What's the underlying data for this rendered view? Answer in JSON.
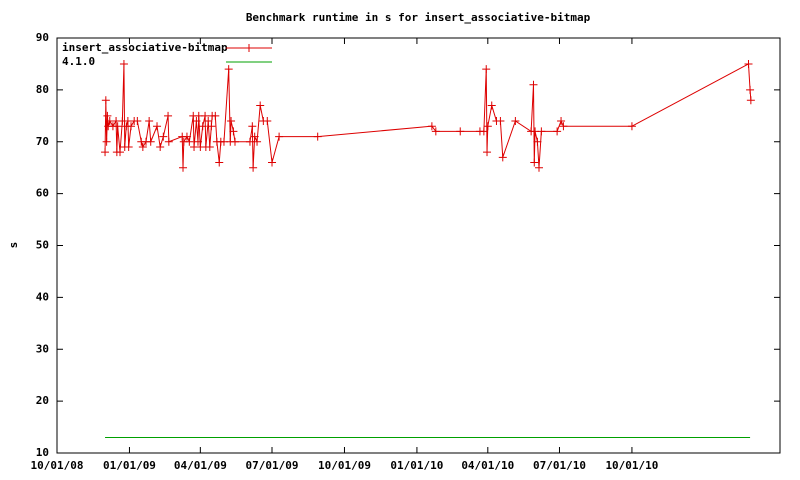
{
  "chart_data": {
    "type": "line",
    "title": "Benchmark runtime in s for insert_associative-bitmap",
    "y_label": "s",
    "xlim": [
      "2008-10-01",
      "2011-04-07"
    ],
    "xticks": [
      {
        "value": "2008-10-01",
        "label": "10/01/08"
      },
      {
        "value": "2009-01-01",
        "label": "01/01/09"
      },
      {
        "value": "2009-04-01",
        "label": "04/01/09"
      },
      {
        "value": "2009-07-01",
        "label": "07/01/09"
      },
      {
        "value": "2009-10-01",
        "label": "10/01/09"
      },
      {
        "value": "2010-01-01",
        "label": "01/01/10"
      },
      {
        "value": "2010-04-01",
        "label": "04/01/10"
      },
      {
        "value": "2010-07-01",
        "label": "07/01/10"
      },
      {
        "value": "2010-10-01",
        "label": "10/01/10"
      }
    ],
    "ylim": [
      10,
      90
    ],
    "yticks": [
      10,
      20,
      30,
      40,
      50,
      60,
      70,
      80,
      90
    ],
    "grid": false,
    "legend": "top-left",
    "series": [
      {
        "name": "insert_associative-bitmap",
        "color": "#dd0000",
        "markers": true,
        "x": [
          "2008-12-01",
          "2008-12-02",
          "2008-12-03",
          "2008-12-04",
          "2008-12-05",
          "2008-12-07",
          "2008-12-11",
          "2008-12-15",
          "2008-12-16",
          "2008-12-17",
          "2008-12-20",
          "2008-12-23",
          "2008-12-25",
          "2008-12-26",
          "2008-12-28",
          "2008-12-30",
          "2008-12-31",
          "2009-01-03",
          "2009-01-07",
          "2009-01-11",
          "2009-01-16",
          "2009-01-18",
          "2009-01-22",
          "2009-01-26",
          "2009-01-28",
          "2009-02-05",
          "2009-02-09",
          "2009-02-13",
          "2009-02-19",
          "2009-02-20",
          "2009-03-09",
          "2009-03-10",
          "2009-03-11",
          "2009-03-15",
          "2009-03-18",
          "2009-03-23",
          "2009-03-24",
          "2009-03-27",
          "2009-03-29",
          "2009-03-30",
          "2009-04-01",
          "2009-04-04",
          "2009-04-07",
          "2009-04-08",
          "2009-04-11",
          "2009-04-13",
          "2009-04-15",
          "2009-04-16",
          "2009-04-20",
          "2009-04-22",
          "2009-04-25",
          "2009-04-27",
          "2009-05-01",
          "2009-05-07",
          "2009-05-09",
          "2009-05-10",
          "2009-05-13",
          "2009-05-15",
          "2009-06-03",
          "2009-06-06",
          "2009-06-07",
          "2009-06-09",
          "2009-06-12",
          "2009-06-16",
          "2009-06-20",
          "2009-06-25",
          "2009-07-01",
          "2009-07-10",
          "2009-08-28",
          "2010-01-20",
          "2010-01-25",
          "2010-02-25",
          "2010-03-22",
          "2010-03-27",
          "2010-03-30",
          "2010-03-31",
          "2010-04-01",
          "2010-04-06",
          "2010-04-12",
          "2010-04-17",
          "2010-04-20",
          "2010-05-06",
          "2010-05-26",
          "2010-05-29",
          "2010-05-30",
          "2010-05-31",
          "2010-06-03",
          "2010-06-05",
          "2010-06-08",
          "2010-06-28",
          "2010-07-03",
          "2010-07-06",
          "2010-10-01",
          "2011-02-26",
          "2011-02-28",
          "2011-03-01"
        ],
        "values": [
          68,
          78,
          70,
          75,
          73,
          74,
          73,
          74,
          68,
          73,
          68,
          74,
          85,
          69,
          73,
          74,
          69,
          73,
          74,
          74,
          70,
          69,
          70,
          74,
          70,
          73,
          69,
          71,
          75,
          70,
          71,
          65,
          70,
          71,
          70,
          75,
          69,
          74,
          70,
          75,
          69,
          73,
          75,
          69,
          74,
          69,
          73,
          75,
          75,
          70,
          66,
          70,
          70,
          84,
          70,
          74,
          72,
          70,
          70,
          73,
          65,
          71,
          70,
          77,
          74,
          74,
          66,
          71,
          71,
          73,
          72,
          72,
          72,
          72,
          84,
          68,
          73,
          77,
          74,
          74,
          67,
          74,
          72,
          81,
          66,
          72,
          70,
          65,
          72,
          72,
          74,
          73,
          73,
          85,
          80,
          78
        ]
      },
      {
        "name": "4.1.0",
        "color": "#00a000",
        "markers": false,
        "x": [
          "2008-12-01",
          "2011-02-28"
        ],
        "values": [
          13,
          13
        ]
      }
    ]
  }
}
